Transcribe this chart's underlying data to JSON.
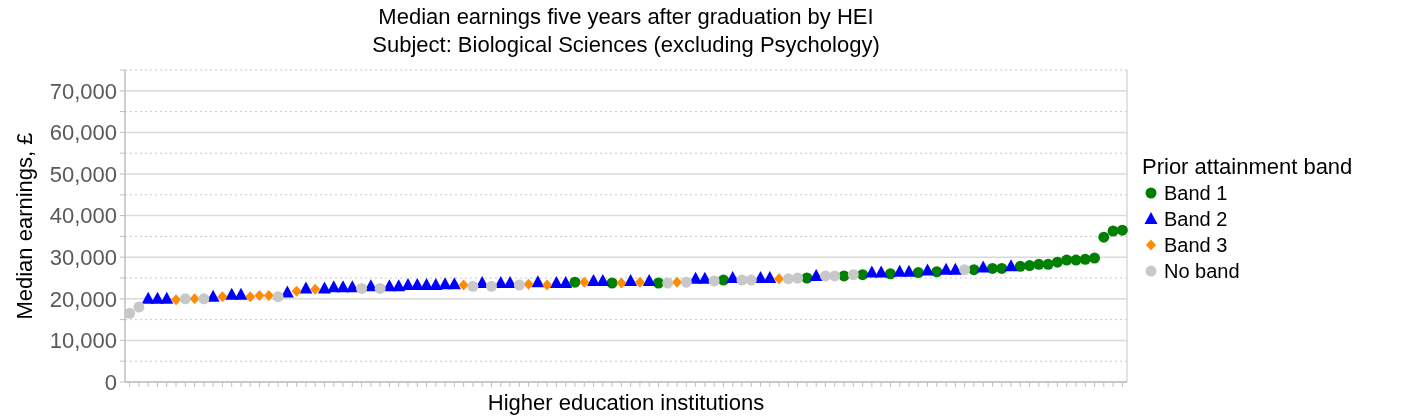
{
  "chart_data": {
    "type": "scatter",
    "title": "Median earnings five years after graduation by HEI",
    "subtitle": "Subject: Biological Sciences (excluding Psychology)",
    "xlabel": "Higher education institutions",
    "ylabel": "Median earnings, £",
    "legend_title": "Prior attainment band",
    "legend": "right",
    "grid": "y",
    "ylim": [
      0,
      75000
    ],
    "yticks": [
      {
        "value": 0,
        "label": "0"
      },
      {
        "value": 5000,
        "label": null
      },
      {
        "value": 10000,
        "label": "10,000"
      },
      {
        "value": 15000,
        "label": null
      },
      {
        "value": 20000,
        "label": "20,000"
      },
      {
        "value": 25000,
        "label": null
      },
      {
        "value": 30000,
        "label": "30,000"
      },
      {
        "value": 35000,
        "label": null
      },
      {
        "value": 40000,
        "label": "40,000"
      },
      {
        "value": 45000,
        "label": null
      },
      {
        "value": 50000,
        "label": "50,000"
      },
      {
        "value": 55000,
        "label": null
      },
      {
        "value": 60000,
        "label": "60,000"
      },
      {
        "value": 65000,
        "label": null
      },
      {
        "value": 70000,
        "label": "70,000"
      },
      {
        "value": 75000,
        "label": null
      }
    ],
    "categories": [
      null,
      null,
      null,
      null,
      null,
      null,
      null,
      null,
      null,
      null,
      null,
      null,
      null,
      null,
      null,
      null,
      null,
      null,
      null,
      null,
      null,
      null,
      null,
      null,
      null,
      null,
      null,
      null,
      null,
      null,
      null,
      null,
      null,
      null,
      null,
      null,
      null,
      null,
      null,
      null,
      null,
      null,
      null,
      null,
      null,
      null,
      null,
      null,
      null,
      null,
      null,
      null,
      null,
      null,
      null,
      null,
      null,
      null,
      null,
      null,
      null,
      null,
      null,
      null,
      null,
      null,
      null,
      null,
      null,
      null,
      null,
      null,
      null,
      null,
      null,
      null,
      null,
      null,
      null,
      null,
      null,
      null,
      null,
      null,
      null,
      null,
      null,
      null,
      null,
      null,
      null,
      null,
      null,
      null,
      null,
      null,
      null,
      null,
      null,
      null,
      null,
      null,
      null,
      null,
      null,
      null,
      null,
      null
    ],
    "series": [
      {
        "name": "Band 1",
        "color": "#008000",
        "marker": "circle",
        "values": [
          null,
          null,
          null,
          null,
          null,
          null,
          null,
          null,
          null,
          null,
          null,
          null,
          null,
          null,
          null,
          null,
          null,
          null,
          null,
          null,
          null,
          null,
          null,
          null,
          null,
          null,
          null,
          null,
          null,
          null,
          null,
          null,
          null,
          null,
          null,
          null,
          null,
          null,
          null,
          null,
          null,
          null,
          null,
          null,
          null,
          null,
          null,
          null,
          24000,
          null,
          null,
          null,
          23800,
          null,
          null,
          null,
          null,
          23800,
          null,
          null,
          null,
          null,
          null,
          null,
          24500,
          null,
          null,
          null,
          null,
          null,
          null,
          null,
          null,
          25000,
          null,
          null,
          null,
          25500,
          null,
          25800,
          null,
          null,
          26000,
          null,
          null,
          26300,
          null,
          26500,
          null,
          null,
          null,
          27000,
          null,
          27300,
          27300,
          null,
          27800,
          28000,
          28300,
          28300,
          28800,
          29300,
          29300,
          29500,
          29800,
          34800,
          36300,
          36500
        ]
      },
      {
        "name": "Band 2",
        "color": "#0000ff",
        "marker": "triangle",
        "values": [
          null,
          null,
          20000,
          20000,
          20000,
          null,
          null,
          null,
          null,
          20500,
          null,
          21000,
          21000,
          null,
          null,
          null,
          null,
          21500,
          null,
          22500,
          null,
          22500,
          22800,
          22800,
          22800,
          null,
          23000,
          null,
          23000,
          23000,
          23300,
          23300,
          23300,
          23300,
          23500,
          23500,
          null,
          null,
          23800,
          null,
          23800,
          23800,
          null,
          null,
          24000,
          null,
          23800,
          23800,
          null,
          null,
          24300,
          24300,
          null,
          null,
          24300,
          null,
          24300,
          null,
          null,
          null,
          null,
          24800,
          24800,
          null,
          null,
          25000,
          null,
          null,
          25000,
          25000,
          null,
          null,
          null,
          null,
          25500,
          null,
          null,
          null,
          null,
          null,
          26300,
          26300,
          null,
          26500,
          26500,
          null,
          26800,
          null,
          27000,
          27000,
          null,
          null,
          27500,
          null,
          null,
          27800,
          null,
          null,
          null,
          null,
          null,
          null,
          null,
          null,
          null,
          null,
          null,
          null
        ]
      },
      {
        "name": "Band 3",
        "color": "#ff8c00",
        "marker": "diamond",
        "values": [
          null,
          null,
          null,
          null,
          null,
          19800,
          null,
          20000,
          null,
          null,
          20500,
          null,
          null,
          20500,
          20800,
          20800,
          null,
          null,
          21800,
          null,
          22300,
          null,
          null,
          null,
          null,
          null,
          null,
          null,
          null,
          null,
          null,
          null,
          null,
          null,
          null,
          null,
          23300,
          null,
          null,
          null,
          null,
          null,
          null,
          23500,
          null,
          23300,
          null,
          null,
          null,
          24000,
          null,
          null,
          null,
          23800,
          null,
          24000,
          null,
          null,
          null,
          24000,
          null,
          null,
          null,
          null,
          null,
          null,
          null,
          null,
          null,
          null,
          24800,
          null,
          null,
          null,
          null,
          null,
          null,
          null,
          null,
          null,
          null,
          null,
          null,
          null,
          null,
          null,
          null,
          null,
          null,
          null,
          null,
          null,
          null,
          null,
          null,
          null,
          null,
          null,
          null,
          null,
          null,
          null,
          null,
          null,
          null,
          null,
          null,
          null
        ]
      },
      {
        "name": "No band",
        "color": "#c8c8c8",
        "marker": "circle",
        "values": [
          16500,
          18000,
          null,
          null,
          null,
          null,
          20000,
          null,
          20000,
          null,
          null,
          null,
          null,
          null,
          null,
          null,
          20500,
          null,
          null,
          null,
          null,
          null,
          null,
          null,
          null,
          22500,
          null,
          22500,
          null,
          null,
          null,
          null,
          null,
          null,
          null,
          null,
          null,
          23000,
          null,
          23000,
          null,
          null,
          23300,
          null,
          null,
          null,
          null,
          null,
          null,
          null,
          null,
          null,
          null,
          null,
          null,
          null,
          null,
          null,
          23800,
          null,
          24000,
          null,
          null,
          24300,
          null,
          null,
          24500,
          24500,
          null,
          null,
          null,
          24800,
          25000,
          null,
          null,
          25500,
          25500,
          null,
          25800,
          null,
          null,
          null,
          null,
          null,
          null,
          null,
          null,
          null,
          null,
          null,
          27000,
          null,
          null,
          null,
          null,
          null,
          null,
          null,
          null,
          null,
          null,
          null,
          null,
          null,
          null,
          null,
          null,
          null
        ]
      }
    ]
  }
}
